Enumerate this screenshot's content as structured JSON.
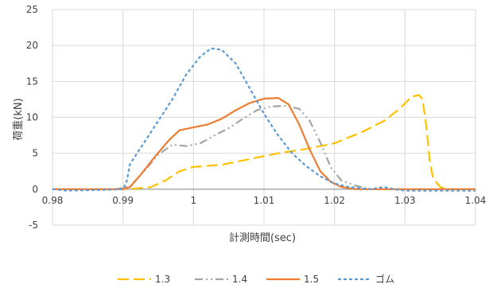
{
  "chart_data": {
    "type": "line",
    "xlabel": "計測時間(sec)",
    "ylabel": "荷重(kN)",
    "xlim": [
      0.98,
      1.04
    ],
    "ylim": [
      -5,
      25
    ],
    "x_ticks": [
      "0.98",
      "0.99",
      "1",
      "1.01",
      "1.02",
      "1.03",
      "1.04"
    ],
    "y_ticks": [
      "-5",
      "0",
      "5",
      "10",
      "15",
      "20",
      "25"
    ],
    "grid": true,
    "legend_position": "bottom",
    "series": [
      {
        "name": "1.3",
        "color": "#FFC000",
        "dash": "long-dash",
        "points": [
          [
            0.98,
            0
          ],
          [
            0.988,
            0
          ],
          [
            0.992,
            0.1
          ],
          [
            0.994,
            0.3
          ],
          [
            0.996,
            1.2
          ],
          [
            0.998,
            2.5
          ],
          [
            1.0,
            3.1
          ],
          [
            1.004,
            3.4
          ],
          [
            1.008,
            4.2
          ],
          [
            1.012,
            5.0
          ],
          [
            1.016,
            5.6
          ],
          [
            1.02,
            6.4
          ],
          [
            1.024,
            8.0
          ],
          [
            1.027,
            9.5
          ],
          [
            1.029,
            11.0
          ],
          [
            1.031,
            12.9
          ],
          [
            1.032,
            13.1
          ],
          [
            1.0325,
            12.5
          ],
          [
            1.033,
            9.0
          ],
          [
            1.0335,
            4.0
          ],
          [
            1.034,
            1.5
          ],
          [
            1.035,
            0.3
          ],
          [
            1.036,
            0
          ],
          [
            1.04,
            0
          ]
        ]
      },
      {
        "name": "1.4",
        "color": "#A5A5A5",
        "dash": "dash-dot-dot",
        "points": [
          [
            0.98,
            0
          ],
          [
            0.989,
            0
          ],
          [
            0.991,
            0.4
          ],
          [
            0.993,
            2.5
          ],
          [
            0.995,
            4.8
          ],
          [
            0.997,
            6.2
          ],
          [
            0.999,
            6.0
          ],
          [
            1.001,
            6.4
          ],
          [
            1.003,
            7.5
          ],
          [
            1.005,
            8.5
          ],
          [
            1.007,
            9.8
          ],
          [
            1.009,
            11.0
          ],
          [
            1.011,
            11.5
          ],
          [
            1.013,
            11.6
          ],
          [
            1.015,
            11.2
          ],
          [
            1.0165,
            9.5
          ],
          [
            1.018,
            6.5
          ],
          [
            1.0195,
            3.0
          ],
          [
            1.021,
            1.2
          ],
          [
            1.023,
            0.5
          ],
          [
            1.025,
            0
          ],
          [
            1.04,
            0
          ]
        ]
      },
      {
        "name": "1.5",
        "color": "#ED7D31",
        "dash": "solid",
        "points": [
          [
            0.98,
            0
          ],
          [
            0.99,
            0
          ],
          [
            0.991,
            0.3
          ],
          [
            0.9925,
            2.0
          ],
          [
            0.9945,
            4.5
          ],
          [
            0.9965,
            6.8
          ],
          [
            0.998,
            8.2
          ],
          [
            1.0,
            8.6
          ],
          [
            1.002,
            9.0
          ],
          [
            1.004,
            9.8
          ],
          [
            1.006,
            11.0
          ],
          [
            1.008,
            12.0
          ],
          [
            1.01,
            12.6
          ],
          [
            1.012,
            12.7
          ],
          [
            1.0135,
            11.8
          ],
          [
            1.015,
            9.0
          ],
          [
            1.0165,
            5.5
          ],
          [
            1.018,
            2.5
          ],
          [
            1.0195,
            1.0
          ],
          [
            1.021,
            0.3
          ],
          [
            1.023,
            0
          ],
          [
            1.04,
            0
          ]
        ]
      },
      {
        "name": "ゴム",
        "color": "#5B9BD5",
        "dash": "short-dash",
        "points": [
          [
            0.98,
            0
          ],
          [
            0.982,
            -0.2
          ],
          [
            0.987,
            -0.1
          ],
          [
            0.99,
            0
          ],
          [
            0.9905,
            1.0
          ],
          [
            0.991,
            3.5
          ],
          [
            0.993,
            6.5
          ],
          [
            0.995,
            9.5
          ],
          [
            0.997,
            12.5
          ],
          [
            0.999,
            16.0
          ],
          [
            1.001,
            18.5
          ],
          [
            1.0025,
            19.6
          ],
          [
            1.004,
            19.4
          ],
          [
            1.006,
            17.5
          ],
          [
            1.008,
            14.0
          ],
          [
            1.01,
            10.5
          ],
          [
            1.012,
            7.5
          ],
          [
            1.014,
            5.0
          ],
          [
            1.016,
            3.2
          ],
          [
            1.018,
            1.8
          ],
          [
            1.02,
            0.8
          ],
          [
            1.022,
            0.3
          ],
          [
            1.025,
            0
          ],
          [
            1.027,
            0.3
          ],
          [
            1.0285,
            0
          ],
          [
            1.03,
            -0.2
          ],
          [
            1.04,
            -0.2
          ]
        ]
      }
    ]
  }
}
